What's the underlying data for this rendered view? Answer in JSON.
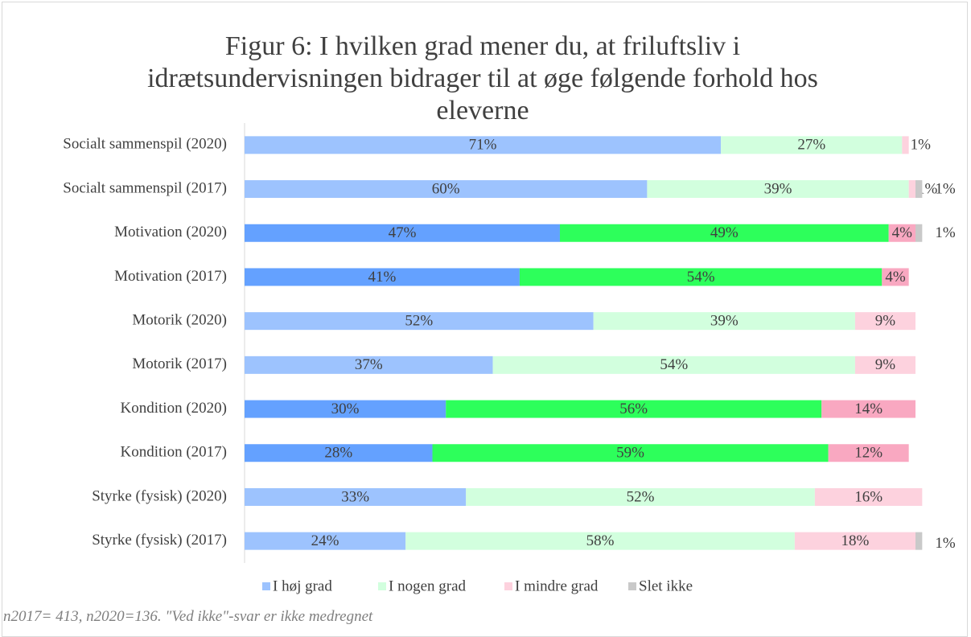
{
  "chart_data": {
    "type": "stacked_barh",
    "title": "Figur 6: I hvilken grad mener du, at friluftsliv i idrætsundervisningen bidrager til at øge følgende forhold hos eleverne",
    "footnote": "n2017= 413, n2020=136. \"Ved ikke\"-svar er ikke medregnet",
    "categories": [
      "Socialt sammenspil (2020)",
      "Socialt sammenspil (2017)",
      "Motivation (2020)",
      "Motivation (2017)",
      "Motorik (2020)",
      "Motorik (2017)",
      "Kondition (2020)",
      "Kondition (2017)",
      "Styrke (fysisk) (2020)",
      "Styrke (fysisk) (2017)"
    ],
    "xlim": [
      0,
      100
    ],
    "legend": "bottom",
    "series": [
      {
        "name": "I høj grad",
        "color": "#9dc3fe",
        "colors": [
          "#9dc3fe",
          "#9dc3fe",
          "#64a1ff",
          "#64a1ff",
          "#9dc3fe",
          "#9dc3fe",
          "#64a1ff",
          "#64a1ff",
          "#9dc3fe",
          "#9dc3fe"
        ],
        "values": [
          71,
          60,
          47,
          41,
          52,
          37,
          30,
          28,
          33,
          24
        ],
        "value_labels": [
          "71%",
          "60%",
          "47%",
          "41%",
          "52%",
          "37%",
          "30%",
          "28%",
          "33%",
          "24%"
        ]
      },
      {
        "name": "I nogen grad",
        "color": "#d2ffde",
        "colors": [
          "#d2ffde",
          "#d2ffde",
          "#2dff5b",
          "#2dff5b",
          "#d2ffde",
          "#d2ffde",
          "#2dff5b",
          "#2dff5b",
          "#d2ffde",
          "#d2ffde"
        ],
        "values": [
          27,
          39,
          49,
          54,
          39,
          54,
          56,
          59,
          52,
          58
        ],
        "value_labels": [
          "27%",
          "39%",
          "49%",
          "54%",
          "39%",
          "54%",
          "56%",
          "59%",
          "52%",
          "58%"
        ]
      },
      {
        "name": "I mindre grad",
        "color": "#fdd2de",
        "colors": [
          "#fdd2de",
          "#fdd2de",
          "#f9a8c1",
          "#f9a8c1",
          "#fdd2de",
          "#fdd2de",
          "#f9a8c1",
          "#f9a8c1",
          "#fdd2de",
          "#fdd2de"
        ],
        "values": [
          1,
          1,
          4,
          4,
          9,
          9,
          14,
          12,
          16,
          18
        ],
        "value_labels": [
          "1%",
          "1%",
          "4%",
          "4%",
          "9%",
          "9%",
          "14%",
          "12%",
          "16%",
          "18%"
        ]
      },
      {
        "name": "Slet ikke",
        "color": "#c9c9c9",
        "colors": [
          "#c9c9c9",
          "#c9c9c9",
          "#c9c9c9",
          "#c9c9c9",
          "#c9c9c9",
          "#c9c9c9",
          "#c9c9c9",
          "#c9c9c9",
          "#c9c9c9",
          "#c9c9c9"
        ],
        "values": [
          null,
          1,
          1,
          null,
          null,
          null,
          null,
          null,
          null,
          1
        ],
        "value_labels": [
          null,
          "1%",
          "1%",
          null,
          null,
          null,
          null,
          null,
          null,
          "1%"
        ]
      }
    ]
  }
}
